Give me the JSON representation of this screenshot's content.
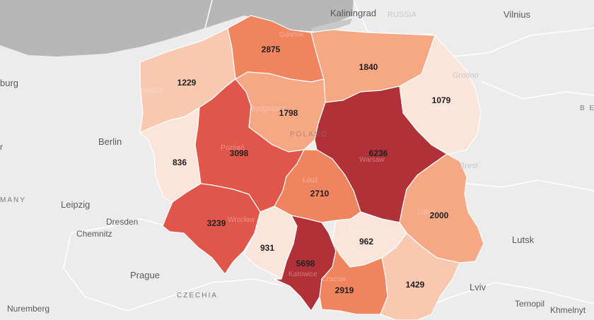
{
  "colors": {
    "land": "#ececec",
    "sea": "#b7b7b7",
    "scale": [
      "#fbe4da",
      "#f9c8b1",
      "#f6a784",
      "#f0845f",
      "#e0564a",
      "#b03138"
    ]
  },
  "regions": [
    {
      "id": "zachodniopomorskie",
      "value": "1229",
      "label": "Szczecin",
      "level": 1
    },
    {
      "id": "pomorskie",
      "value": "2875",
      "label": "Gdańsk",
      "level": 3
    },
    {
      "id": "warminsko-mazurskie",
      "value": "1840",
      "label": "",
      "level": 2
    },
    {
      "id": "podlaskie",
      "value": "1079",
      "label": "Białystok",
      "level": 0
    },
    {
      "id": "kujawsko-pomorskie",
      "value": "1798",
      "label": "Bydgoszcz",
      "level": 2
    },
    {
      "id": "lubuskie",
      "value": "836",
      "label": "",
      "level": 0
    },
    {
      "id": "wielkopolskie",
      "value": "3098",
      "label": "Poznań",
      "level": 4
    },
    {
      "id": "mazowieckie",
      "value": "6236",
      "label": "Warsaw",
      "level": 5
    },
    {
      "id": "lodzkie",
      "value": "2710",
      "label": "Łódź",
      "level": 3
    },
    {
      "id": "lubelskie",
      "value": "2000",
      "label": "Lublin",
      "level": 2
    },
    {
      "id": "dolnoslaskie",
      "value": "3239",
      "label": "Wrocław",
      "level": 4
    },
    {
      "id": "opolskie",
      "value": "931",
      "label": "",
      "level": 0
    },
    {
      "id": "slaskie",
      "value": "5698",
      "label": "Katowice",
      "level": 5
    },
    {
      "id": "swietokrzyskie",
      "value": "962",
      "label": "Kielce",
      "level": 0
    },
    {
      "id": "malopolskie",
      "value": "2919",
      "label": "Cracow",
      "level": 3
    },
    {
      "id": "podkarpackie",
      "value": "1429",
      "label": "",
      "level": 1
    }
  ],
  "places": {
    "kaliningrad": "Kaliningrad",
    "russia": "RUSSIA",
    "vilnius": "Vilnius",
    "grodno": "Grodno",
    "brest": "Brest",
    "lutsk": "Lutsk",
    "lviv": "Lviv",
    "ternopil": "Ternopil",
    "khmelnytskyi": "Khmelnyt",
    "berlin": "Berlin",
    "leipzig": "Leipzig",
    "dresden": "Dresden",
    "chemnitz": "Chemnitz",
    "prague": "Prague",
    "nuremberg": "Nuremberg",
    "czechia": "CZECHIA",
    "poland": "POLAND",
    "germany": "MANY",
    "hamburg": "burg",
    "belarus": "B E",
    "edge_r": "r"
  }
}
